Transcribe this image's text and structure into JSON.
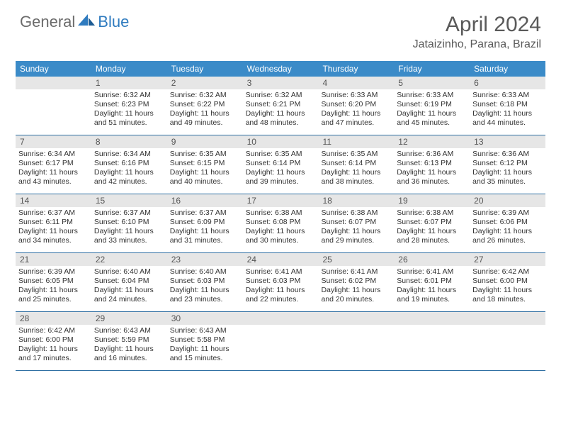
{
  "logo": {
    "general": "General",
    "blue": "Blue"
  },
  "title": "April 2024",
  "location": "Jataizinho, Parana, Brazil",
  "day_names": [
    "Sunday",
    "Monday",
    "Tuesday",
    "Wednesday",
    "Thursday",
    "Friday",
    "Saturday"
  ],
  "colors": {
    "header_bg": "#3b8bc8",
    "header_text": "#ffffff",
    "daynum_bg": "#e6e6e6",
    "week_border": "#2f6fa3",
    "title_color": "#5a5a5a",
    "logo_gray": "#6b6b6b",
    "logo_blue": "#2f7bbf",
    "text_color": "#333333"
  },
  "start_weekday": 1,
  "days": [
    {
      "n": 1,
      "sunrise": "6:32 AM",
      "sunset": "6:23 PM",
      "daylight": "11 hours and 51 minutes."
    },
    {
      "n": 2,
      "sunrise": "6:32 AM",
      "sunset": "6:22 PM",
      "daylight": "11 hours and 49 minutes."
    },
    {
      "n": 3,
      "sunrise": "6:32 AM",
      "sunset": "6:21 PM",
      "daylight": "11 hours and 48 minutes."
    },
    {
      "n": 4,
      "sunrise": "6:33 AM",
      "sunset": "6:20 PM",
      "daylight": "11 hours and 47 minutes."
    },
    {
      "n": 5,
      "sunrise": "6:33 AM",
      "sunset": "6:19 PM",
      "daylight": "11 hours and 45 minutes."
    },
    {
      "n": 6,
      "sunrise": "6:33 AM",
      "sunset": "6:18 PM",
      "daylight": "11 hours and 44 minutes."
    },
    {
      "n": 7,
      "sunrise": "6:34 AM",
      "sunset": "6:17 PM",
      "daylight": "11 hours and 43 minutes."
    },
    {
      "n": 8,
      "sunrise": "6:34 AM",
      "sunset": "6:16 PM",
      "daylight": "11 hours and 42 minutes."
    },
    {
      "n": 9,
      "sunrise": "6:35 AM",
      "sunset": "6:15 PM",
      "daylight": "11 hours and 40 minutes."
    },
    {
      "n": 10,
      "sunrise": "6:35 AM",
      "sunset": "6:14 PM",
      "daylight": "11 hours and 39 minutes."
    },
    {
      "n": 11,
      "sunrise": "6:35 AM",
      "sunset": "6:14 PM",
      "daylight": "11 hours and 38 minutes."
    },
    {
      "n": 12,
      "sunrise": "6:36 AM",
      "sunset": "6:13 PM",
      "daylight": "11 hours and 36 minutes."
    },
    {
      "n": 13,
      "sunrise": "6:36 AM",
      "sunset": "6:12 PM",
      "daylight": "11 hours and 35 minutes."
    },
    {
      "n": 14,
      "sunrise": "6:37 AM",
      "sunset": "6:11 PM",
      "daylight": "11 hours and 34 minutes."
    },
    {
      "n": 15,
      "sunrise": "6:37 AM",
      "sunset": "6:10 PM",
      "daylight": "11 hours and 33 minutes."
    },
    {
      "n": 16,
      "sunrise": "6:37 AM",
      "sunset": "6:09 PM",
      "daylight": "11 hours and 31 minutes."
    },
    {
      "n": 17,
      "sunrise": "6:38 AM",
      "sunset": "6:08 PM",
      "daylight": "11 hours and 30 minutes."
    },
    {
      "n": 18,
      "sunrise": "6:38 AM",
      "sunset": "6:07 PM",
      "daylight": "11 hours and 29 minutes."
    },
    {
      "n": 19,
      "sunrise": "6:38 AM",
      "sunset": "6:07 PM",
      "daylight": "11 hours and 28 minutes."
    },
    {
      "n": 20,
      "sunrise": "6:39 AM",
      "sunset": "6:06 PM",
      "daylight": "11 hours and 26 minutes."
    },
    {
      "n": 21,
      "sunrise": "6:39 AM",
      "sunset": "6:05 PM",
      "daylight": "11 hours and 25 minutes."
    },
    {
      "n": 22,
      "sunrise": "6:40 AM",
      "sunset": "6:04 PM",
      "daylight": "11 hours and 24 minutes."
    },
    {
      "n": 23,
      "sunrise": "6:40 AM",
      "sunset": "6:03 PM",
      "daylight": "11 hours and 23 minutes."
    },
    {
      "n": 24,
      "sunrise": "6:41 AM",
      "sunset": "6:03 PM",
      "daylight": "11 hours and 22 minutes."
    },
    {
      "n": 25,
      "sunrise": "6:41 AM",
      "sunset": "6:02 PM",
      "daylight": "11 hours and 20 minutes."
    },
    {
      "n": 26,
      "sunrise": "6:41 AM",
      "sunset": "6:01 PM",
      "daylight": "11 hours and 19 minutes."
    },
    {
      "n": 27,
      "sunrise": "6:42 AM",
      "sunset": "6:00 PM",
      "daylight": "11 hours and 18 minutes."
    },
    {
      "n": 28,
      "sunrise": "6:42 AM",
      "sunset": "6:00 PM",
      "daylight": "11 hours and 17 minutes."
    },
    {
      "n": 29,
      "sunrise": "6:43 AM",
      "sunset": "5:59 PM",
      "daylight": "11 hours and 16 minutes."
    },
    {
      "n": 30,
      "sunrise": "6:43 AM",
      "sunset": "5:58 PM",
      "daylight": "11 hours and 15 minutes."
    }
  ]
}
